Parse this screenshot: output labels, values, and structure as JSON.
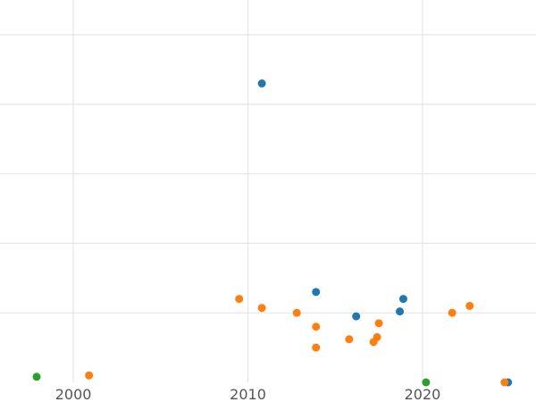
{
  "chart_data": {
    "type": "scatter",
    "title": "",
    "xlabel": "",
    "ylabel": "",
    "grid": true,
    "legend": "none",
    "xlim": [
      1995.8,
      2026.5
    ],
    "ylim": [
      0,
      5.5
    ],
    "x_ticks": [
      2000,
      2010,
      2020
    ],
    "x_tick_labels": [
      "2000",
      "2010",
      "2020"
    ],
    "y_gridlines": [
      1,
      2,
      3,
      4,
      5
    ],
    "series": [
      {
        "color": "#1f77b4",
        "points": [
          {
            "x": 2010.8,
            "y": 4.3
          },
          {
            "x": 2013.9,
            "y": 1.3
          },
          {
            "x": 2016.2,
            "y": 0.95
          },
          {
            "x": 2018.9,
            "y": 1.2
          },
          {
            "x": 2018.7,
            "y": 1.02
          },
          {
            "x": 2024.9,
            "y": 0.0
          }
        ]
      },
      {
        "color": "#ff7f0e",
        "points": [
          {
            "x": 2000.9,
            "y": 0.1
          },
          {
            "x": 2009.5,
            "y": 1.2
          },
          {
            "x": 2010.8,
            "y": 1.07
          },
          {
            "x": 2012.8,
            "y": 1.0
          },
          {
            "x": 2013.9,
            "y": 0.8
          },
          {
            "x": 2013.9,
            "y": 0.5
          },
          {
            "x": 2015.8,
            "y": 0.62
          },
          {
            "x": 2017.2,
            "y": 0.58
          },
          {
            "x": 2017.4,
            "y": 0.65
          },
          {
            "x": 2017.5,
            "y": 0.85
          },
          {
            "x": 2021.7,
            "y": 1.0
          },
          {
            "x": 2022.7,
            "y": 1.1
          },
          {
            "x": 2024.7,
            "y": 0.0
          }
        ]
      },
      {
        "color": "#2ca02c",
        "points": [
          {
            "x": 1997.9,
            "y": 0.08
          },
          {
            "x": 2020.2,
            "y": 0.0
          }
        ]
      }
    ]
  }
}
